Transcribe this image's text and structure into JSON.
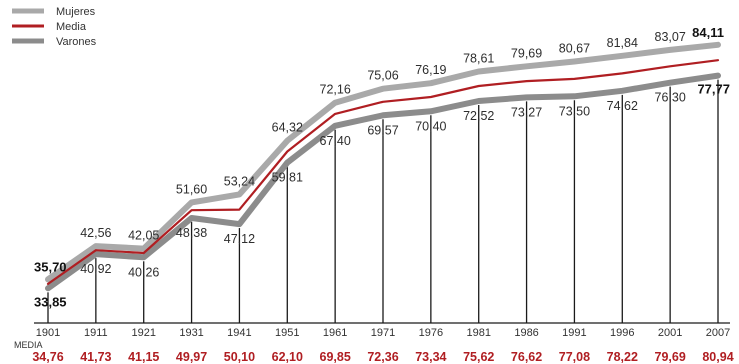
{
  "chart_data": {
    "type": "line",
    "categories": [
      "1901",
      "1911",
      "1921",
      "1931",
      "1941",
      "1951",
      "1961",
      "1971",
      "1976",
      "1981",
      "1986",
      "1991",
      "1996",
      "2001",
      "2007"
    ],
    "series": [
      {
        "name": "Mujeres",
        "color": "#a9a9a9",
        "values": [
          35.7,
          42.56,
          42.05,
          51.6,
          53.24,
          64.32,
          72.16,
          75.06,
          76.19,
          78.61,
          79.69,
          80.67,
          81.84,
          83.07,
          84.11
        ],
        "labels": [
          "35,70",
          "42,56",
          "42,05",
          "51,60",
          "53,24",
          "64,32",
          "72,16",
          "75,06",
          "76,19",
          "78,61",
          "79,69",
          "80,67",
          "81,84",
          "83,07",
          "84,11"
        ]
      },
      {
        "name": "Media",
        "color": "#b01e22",
        "values": [
          34.76,
          41.73,
          41.15,
          49.97,
          50.1,
          62.1,
          69.85,
          72.36,
          73.34,
          75.62,
          76.62,
          77.08,
          78.22,
          79.69,
          80.94
        ],
        "labels": [
          "34,76",
          "41,73",
          "41,15",
          "49,97",
          "50,10",
          "62,10",
          "69,85",
          "72,36",
          "73,34",
          "75,62",
          "76,62",
          "77,08",
          "78,22",
          "79,69",
          "80,94"
        ]
      },
      {
        "name": "Varones",
        "color": "#8c8c8c",
        "values": [
          33.85,
          40.92,
          40.26,
          48.38,
          47.12,
          59.81,
          67.4,
          69.57,
          70.4,
          72.52,
          73.27,
          73.5,
          74.62,
          76.3,
          77.77
        ],
        "labels": [
          "33,85",
          "40,92",
          "40,26",
          "48,38",
          "47,12",
          "59,81",
          "67,40",
          "69,57",
          "70,40",
          "72,52",
          "73,27",
          "73,50",
          "74,62",
          "76,30",
          "77,77"
        ]
      }
    ],
    "media_row_label": "MEDIA",
    "grid": "vertical lines at each year",
    "legend_position": "top-left"
  }
}
